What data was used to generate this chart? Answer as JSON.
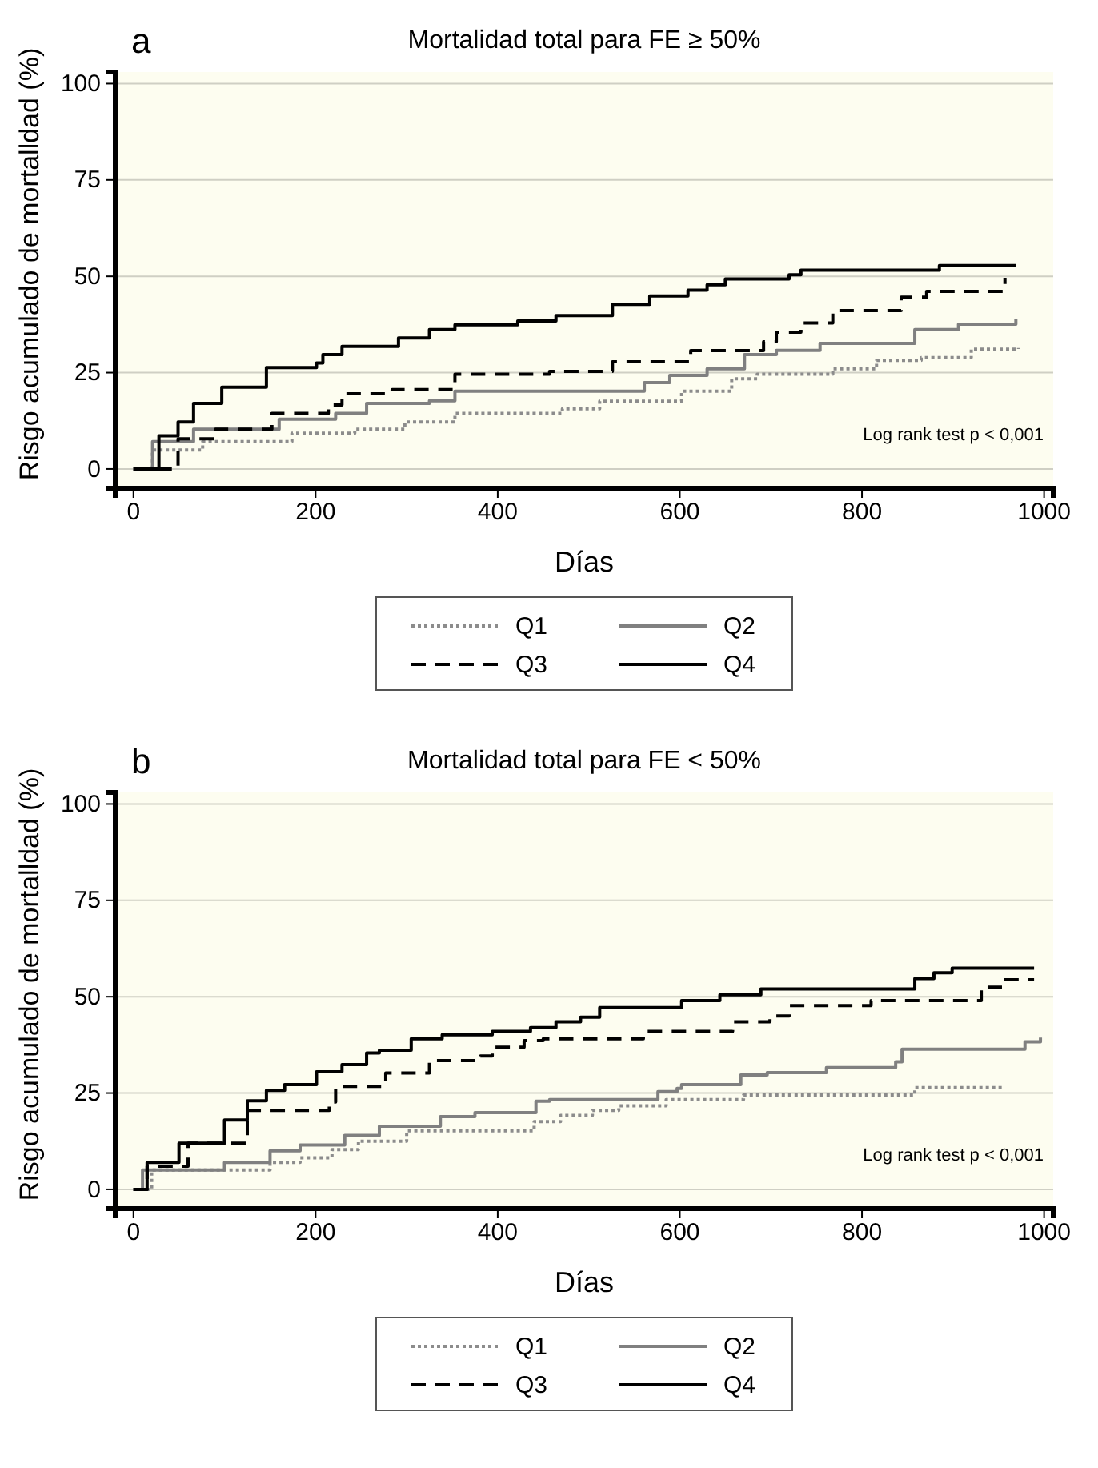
{
  "chart_data": [
    {
      "type": "step",
      "title": "Mortalidad total para FE ≥ 50%",
      "xlabel": "Días",
      "ylabel": "Risgo acumulado de mortalldad (%)",
      "annotations": [
        "a",
        "Log rank test p < 0,001"
      ],
      "xlim": [
        -20,
        1010
      ],
      "ylim": [
        -5,
        103
      ],
      "xticks": [
        0,
        200,
        400,
        600,
        800,
        1000
      ],
      "yticks": [
        0,
        25,
        50,
        75,
        100
      ],
      "grid": "y",
      "legend": "bottom",
      "series": [
        {
          "name": "Q1",
          "color": "#8c8c8c",
          "line_style": "dotted",
          "x": [
            0,
            21,
            76,
            174,
            243,
            298,
            353,
            471,
            512,
            602,
            657,
            685,
            768,
            816,
            865,
            920,
            972
          ],
          "values": [
            0,
            4.9,
            7.1,
            9.3,
            10.3,
            12.2,
            14.4,
            15.6,
            17.6,
            20.2,
            23.4,
            24.6,
            26,
            28.2,
            28.9,
            31.1,
            31.4
          ]
        },
        {
          "name": "Q2",
          "color": "#808080",
          "line_style": "solid",
          "x": [
            0,
            21,
            66,
            160,
            222,
            256,
            325,
            353,
            561,
            589,
            630,
            671,
            706,
            754,
            858,
            906,
            969
          ],
          "values": [
            0,
            7.1,
            10.3,
            12.9,
            14.4,
            17,
            17.7,
            20.2,
            22.4,
            24.3,
            26,
            29.7,
            30.8,
            32.6,
            36.2,
            37.6,
            38.8
          ]
        },
        {
          "name": "Q3",
          "color": "#000000",
          "line_style": "dashed",
          "x": [
            0,
            49,
            90,
            152,
            214,
            229,
            284,
            353,
            457,
            526,
            612,
            692,
            706,
            733,
            768,
            843,
            871,
            957
          ],
          "values": [
            0,
            7.8,
            10.3,
            14.4,
            16.6,
            19.5,
            20.6,
            24.6,
            25.3,
            27.8,
            30.7,
            33,
            35.5,
            37.9,
            41.1,
            44.6,
            46.1,
            49.6
          ]
        },
        {
          "name": "Q4",
          "color": "#000000",
          "line_style": "solid",
          "x": [
            0,
            28,
            49,
            66,
            97,
            146,
            201,
            208,
            229,
            291,
            325,
            353,
            422,
            464,
            526,
            567,
            609,
            630,
            650,
            720,
            733,
            885,
            969
          ],
          "values": [
            0,
            8.6,
            12.2,
            17,
            21.2,
            26.3,
            27.5,
            29.7,
            31.8,
            34,
            36.2,
            37.4,
            38.4,
            39.8,
            42.7,
            44.9,
            46.4,
            47.8,
            49.3,
            50.4,
            51.6,
            52.8,
            52.8
          ]
        }
      ]
    },
    {
      "type": "step",
      "title": "Mortalidad total para FE < 50%",
      "xlabel": "Días",
      "ylabel": "Risgo acumulado de mortalldad (%)",
      "annotations": [
        "b",
        "Log rank test p < 0,001"
      ],
      "xlim": [
        -20,
        1010
      ],
      "ylim": [
        -5,
        103
      ],
      "xticks": [
        0,
        200,
        400,
        600,
        800,
        1000
      ],
      "yticks": [
        0,
        25,
        50,
        75,
        100
      ],
      "grid": "y",
      "legend": "bottom",
      "series": [
        {
          "name": "Q1",
          "color": "#8c8c8c",
          "line_style": "dotted",
          "x": [
            0,
            20,
            150,
            183,
            218,
            247,
            300,
            440,
            469,
            504,
            533,
            585,
            670,
            858,
            955
          ],
          "values": [
            0,
            5,
            7,
            8.2,
            10.3,
            12.5,
            15.2,
            17.6,
            19.2,
            20.5,
            21.7,
            23.3,
            24.5,
            26.4,
            26.4
          ]
        },
        {
          "name": "Q2",
          "color": "#808080",
          "line_style": "solid",
          "x": [
            0,
            10,
            100,
            150,
            183,
            232,
            270,
            337,
            375,
            442,
            457,
            576,
            597,
            602,
            667,
            696,
            761,
            837,
            844,
            979,
            996
          ],
          "values": [
            0,
            5,
            7,
            10,
            11.5,
            14,
            16.4,
            18.9,
            19.9,
            22.9,
            23.3,
            25.4,
            26.2,
            27.2,
            29.7,
            30.3,
            31.6,
            33.1,
            36.4,
            38.3,
            39.4
          ]
        },
        {
          "name": "Q3",
          "color": "#000000",
          "line_style": "dashed",
          "x": [
            0,
            15,
            60,
            125,
            215,
            222,
            277,
            325,
            381,
            394,
            429,
            450,
            560,
            658,
            699,
            720,
            810,
            931,
            955,
            989
          ],
          "values": [
            0,
            6,
            12,
            20.5,
            22.7,
            26.7,
            30.2,
            33.4,
            34.6,
            36.9,
            38.6,
            39.1,
            41,
            43.5,
            45,
            47.7,
            49,
            52.5,
            54.4,
            54.4
          ]
        },
        {
          "name": "Q4",
          "color": "#000000",
          "line_style": "solid",
          "x": [
            0,
            15,
            50,
            100,
            125,
            146,
            166,
            201,
            229,
            256,
            270,
            305,
            339,
            394,
            436,
            464,
            491,
            512,
            602,
            644,
            689,
            858,
            879,
            899,
            989
          ],
          "values": [
            0,
            7,
            12,
            18,
            23,
            25.7,
            27.2,
            30.5,
            32.4,
            35.4,
            36.1,
            39.1,
            40.1,
            41,
            42,
            43.5,
            44.7,
            47.2,
            49,
            50.5,
            52,
            54.7,
            56.2,
            57.4,
            57.4
          ]
        }
      ]
    }
  ]
}
